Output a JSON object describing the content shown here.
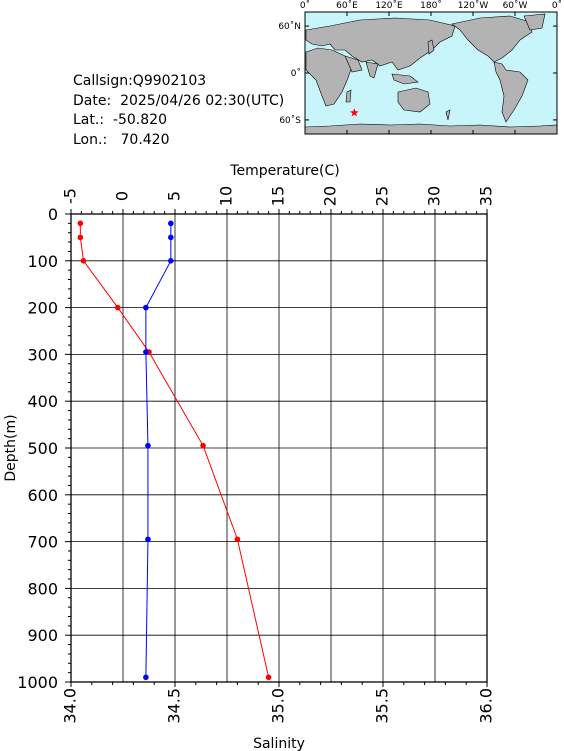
{
  "info": {
    "callsign": "Callsign:Q9902103",
    "date": "Date:  2025/04/26 02:30(UTC)",
    "lat": "Lat.:  -50.820",
    "lon": "Lon.:   70.420"
  },
  "map": {
    "lon_labels": [
      "0˚",
      "60˚E",
      "120˚E",
      "180˚",
      "120˚W",
      "60˚W",
      "0˚"
    ],
    "lat_labels": [
      "60˚N",
      "0˚",
      "60˚S"
    ],
    "ocean_color": "#c8f5fa",
    "land_color": "#b3b3b3",
    "marker_color": "#ff0000",
    "marker_lon": 70.42,
    "marker_lat": -50.82
  },
  "chart_data": {
    "type": "line",
    "top_axis_label": "Temperature(C)",
    "bottom_axis_label": "Salinity",
    "left_axis_label": "Depth(m)",
    "temperature_ticks": [
      "-5",
      "0",
      "5",
      "10",
      "15",
      "20",
      "25",
      "30",
      "35"
    ],
    "salinity_ticks": [
      "34.0",
      "34.5",
      "35.0",
      "35.5",
      "36.0"
    ],
    "depth_ticks": [
      "0",
      "100",
      "200",
      "300",
      "400",
      "500",
      "600",
      "700",
      "800",
      "900",
      "1000"
    ],
    "temperature_range": [
      -5,
      35
    ],
    "salinity_range": [
      34.0,
      36.0
    ],
    "depth_range": [
      0,
      1000
    ],
    "series": [
      {
        "color": "#ff0000",
        "axis": "temperature",
        "depth": [
          20,
          50,
          100,
          200,
          295,
          495,
          695,
          990
        ],
        "values": [
          -4.1,
          -4.1,
          -3.8,
          -0.5,
          2.5,
          7.7,
          11.0,
          14.0
        ]
      },
      {
        "color": "#0000ff",
        "axis": "salinity",
        "depth": [
          20,
          50,
          100,
          200,
          295,
          495,
          695,
          990
        ],
        "values": [
          34.48,
          34.48,
          34.48,
          34.36,
          34.36,
          34.37,
          34.37,
          34.36
        ]
      }
    ]
  }
}
